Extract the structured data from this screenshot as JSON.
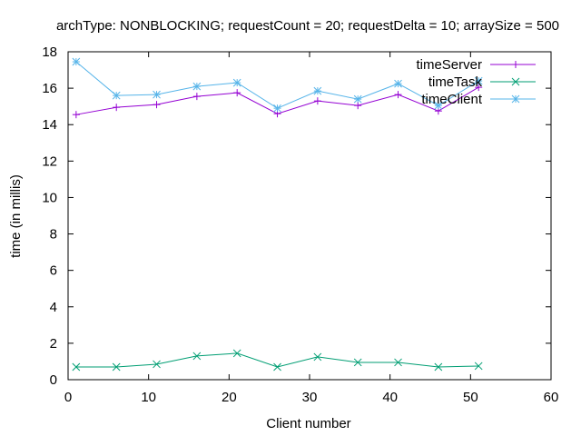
{
  "chart_data": {
    "type": "line",
    "title": "archType: NONBLOCKING; requestCount = 20; requestDelta = 10; arraySize = 500",
    "xlabel": "Client number",
    "ylabel": "time (in millis)",
    "xlim": [
      0,
      60
    ],
    "ylim": [
      0,
      18
    ],
    "xticks": [
      0,
      10,
      20,
      30,
      40,
      50,
      60
    ],
    "yticks": [
      0,
      2,
      4,
      6,
      8,
      10,
      12,
      14,
      16,
      18
    ],
    "grid": false,
    "legend_position": "top-right",
    "x": [
      1,
      6,
      11,
      16,
      21,
      26,
      31,
      36,
      41,
      46,
      51
    ],
    "series": [
      {
        "name": "timeServer",
        "color": "#9400d3",
        "marker": "plus",
        "values": [
          14.55,
          14.95,
          15.1,
          15.55,
          15.75,
          14.6,
          15.3,
          15.05,
          15.65,
          14.75,
          16.05
        ]
      },
      {
        "name": "timeTask",
        "color": "#009e73",
        "marker": "cross",
        "values": [
          0.7,
          0.7,
          0.85,
          1.3,
          1.45,
          0.7,
          1.25,
          0.95,
          0.95,
          0.7,
          0.75
        ]
      },
      {
        "name": "timeClient",
        "color": "#56b4e9",
        "marker": "star",
        "values": [
          17.45,
          15.6,
          15.65,
          16.1,
          16.3,
          14.9,
          15.85,
          15.4,
          16.25,
          15.05,
          16.4
        ]
      }
    ]
  }
}
